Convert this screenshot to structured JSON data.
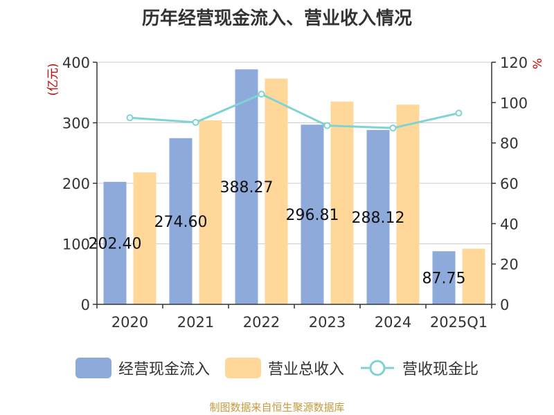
{
  "chart_data": {
    "type": "bar",
    "title": "历年经营现金流入、营业收入情况",
    "categories": [
      "2020",
      "2021",
      "2022",
      "2023",
      "2024",
      "2025Q1"
    ],
    "series": [
      {
        "name": "经营现金流入",
        "kind": "bar",
        "axis": "left",
        "color": "#8eaadb",
        "values": [
          202.4,
          274.6,
          388.27,
          296.81,
          288.12,
          87.75
        ],
        "labels": [
          "202.40",
          "274.60",
          "388.27",
          "296.81",
          "288.12",
          "87.75"
        ]
      },
      {
        "name": "营业总收入",
        "kind": "bar",
        "axis": "left",
        "color": "#ffd899",
        "values": [
          218,
          304,
          373,
          335,
          330,
          92
        ]
      },
      {
        "name": "营收现金比",
        "kind": "line",
        "axis": "right",
        "color": "#7fd3d3",
        "values": [
          92.5,
          90.2,
          104.2,
          88.6,
          87.4,
          94.8
        ]
      }
    ],
    "yaxis_left": {
      "label": "(亿元)",
      "min": 0,
      "max": 400,
      "ticks": [
        0,
        100,
        200,
        300,
        400
      ],
      "tick_labels": [
        "0",
        "100",
        "200",
        "300",
        "400"
      ]
    },
    "yaxis_right": {
      "label": "%",
      "min": 0,
      "max": 120,
      "ticks": [
        0,
        20,
        40,
        60,
        80,
        100,
        120
      ],
      "tick_labels": [
        "0",
        "20",
        "40",
        "60",
        "80",
        "100",
        "120"
      ]
    },
    "grid": true,
    "legend_position": "bottom"
  },
  "source": "制图数据来自恒生聚源数据库"
}
